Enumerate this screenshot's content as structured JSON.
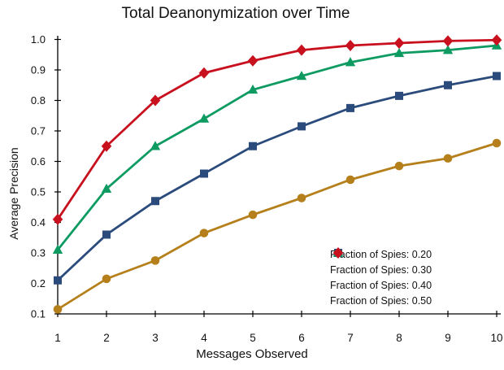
{
  "chart_data": {
    "type": "line",
    "title": "Total Deanonymization over Time",
    "xlabel": "Messages Observed",
    "ylabel": "Average Precision",
    "x": [
      1,
      2,
      3,
      4,
      5,
      6,
      7,
      8,
      9,
      10
    ],
    "xlim": [
      1,
      10
    ],
    "ylim": [
      0.1,
      1.0
    ],
    "xticks": [
      "1",
      "2",
      "3",
      "4",
      "5",
      "6",
      "7",
      "8",
      "9",
      "10"
    ],
    "yticks": [
      "0.1",
      "0.2",
      "0.3",
      "0.4",
      "0.5",
      "0.6",
      "0.7",
      "0.8",
      "0.9",
      "1.0"
    ],
    "grid": false,
    "legend_position": "lower right",
    "axis_color": "#000000",
    "series": [
      {
        "name": "Fraction of Spies: 0.20",
        "marker": "circle",
        "color": "#B5801B",
        "values": [
          0.115,
          0.215,
          0.275,
          0.365,
          0.425,
          0.48,
          0.54,
          0.585,
          0.61,
          0.66
        ]
      },
      {
        "name": "Fraction of Spies: 0.30",
        "marker": "square",
        "color": "#2A4B7C",
        "values": [
          0.21,
          0.36,
          0.47,
          0.56,
          0.65,
          0.715,
          0.775,
          0.815,
          0.85,
          0.88
        ]
      },
      {
        "name": "Fraction of Spies: 0.40",
        "marker": "triangle",
        "color": "#0E9B62",
        "values": [
          0.31,
          0.51,
          0.65,
          0.74,
          0.835,
          0.88,
          0.925,
          0.955,
          0.965,
          0.98
        ]
      },
      {
        "name": "Fraction of Spies: 0.50",
        "marker": "diamond",
        "color": "#C8101E",
        "values": [
          0.41,
          0.65,
          0.8,
          0.89,
          0.93,
          0.965,
          0.98,
          0.988,
          0.995,
          0.998
        ]
      }
    ]
  }
}
